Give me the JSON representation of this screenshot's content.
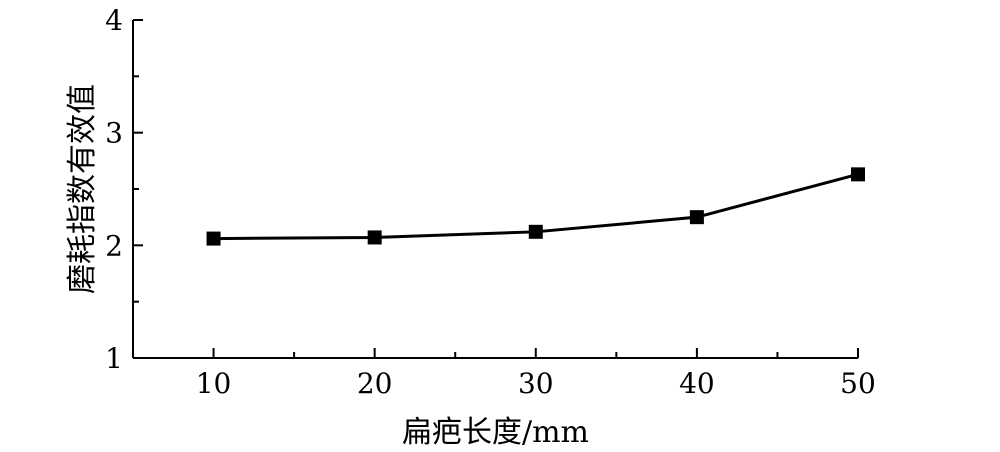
{
  "chart_data": {
    "type": "line",
    "title": "",
    "xlabel": "扁疤长度/mm",
    "ylabel": "磨耗指数有效值",
    "xlim": [
      5,
      50
    ],
    "ylim": [
      1,
      4
    ],
    "x_ticks": [
      10,
      20,
      30,
      40,
      50
    ],
    "x_minor_ticks": [
      15,
      25,
      35,
      45
    ],
    "y_ticks": [
      1,
      2,
      3,
      4
    ],
    "y_minor_ticks": [
      1.5,
      2.5,
      3.5
    ],
    "grid": false,
    "legend": "none",
    "series": [
      {
        "marker": "square",
        "color": "#000000",
        "x": [
          10,
          20,
          30,
          40,
          50
        ],
        "y": [
          2.06,
          2.07,
          2.12,
          2.25,
          2.63
        ]
      }
    ]
  }
}
